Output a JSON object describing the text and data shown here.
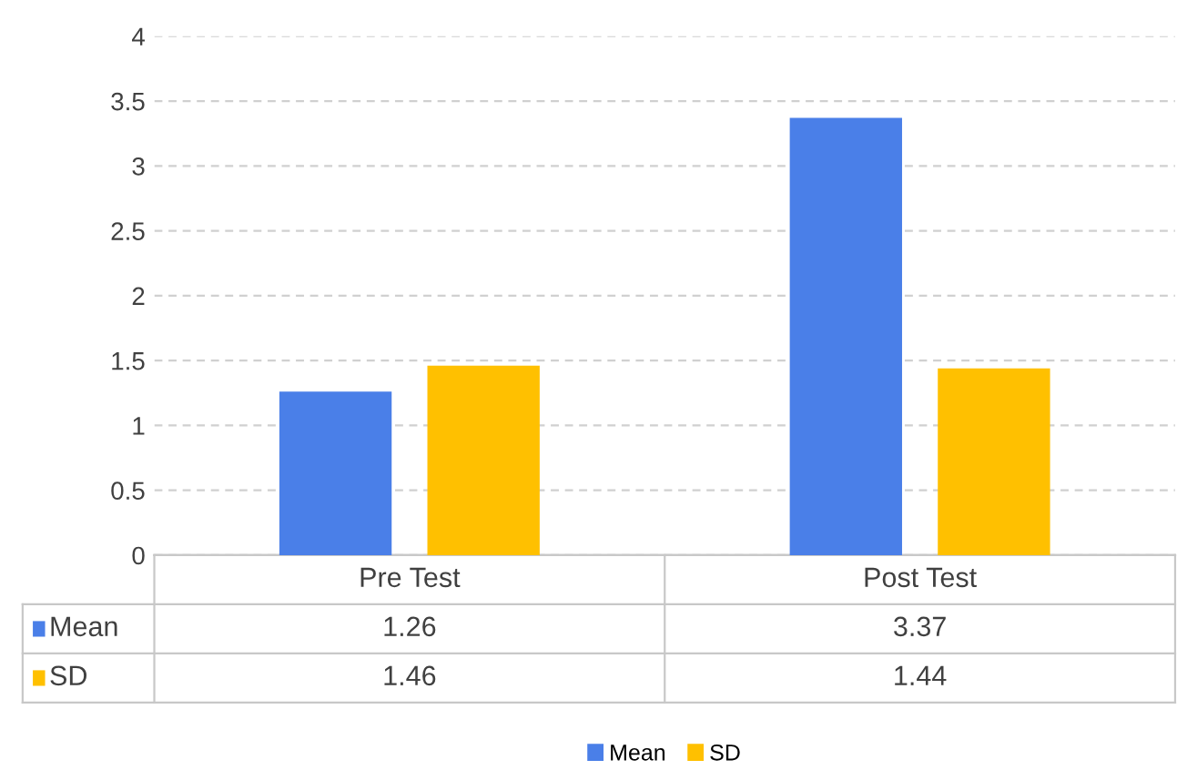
{
  "chart_data": {
    "type": "bar",
    "categories": [
      "Pre Test",
      "Post Test"
    ],
    "series": [
      {
        "name": "Mean",
        "color": "#4a7fe8",
        "values": [
          1.26,
          3.37
        ]
      },
      {
        "name": "SD",
        "color": "#ffc000",
        "values": [
          1.46,
          1.44
        ]
      }
    ],
    "ylim": [
      0,
      4
    ],
    "yticks": [
      0,
      0.5,
      1,
      1.5,
      2,
      2.5,
      3,
      3.5,
      4
    ],
    "grid": "y",
    "legend": "bottom",
    "data_labels": true
  }
}
